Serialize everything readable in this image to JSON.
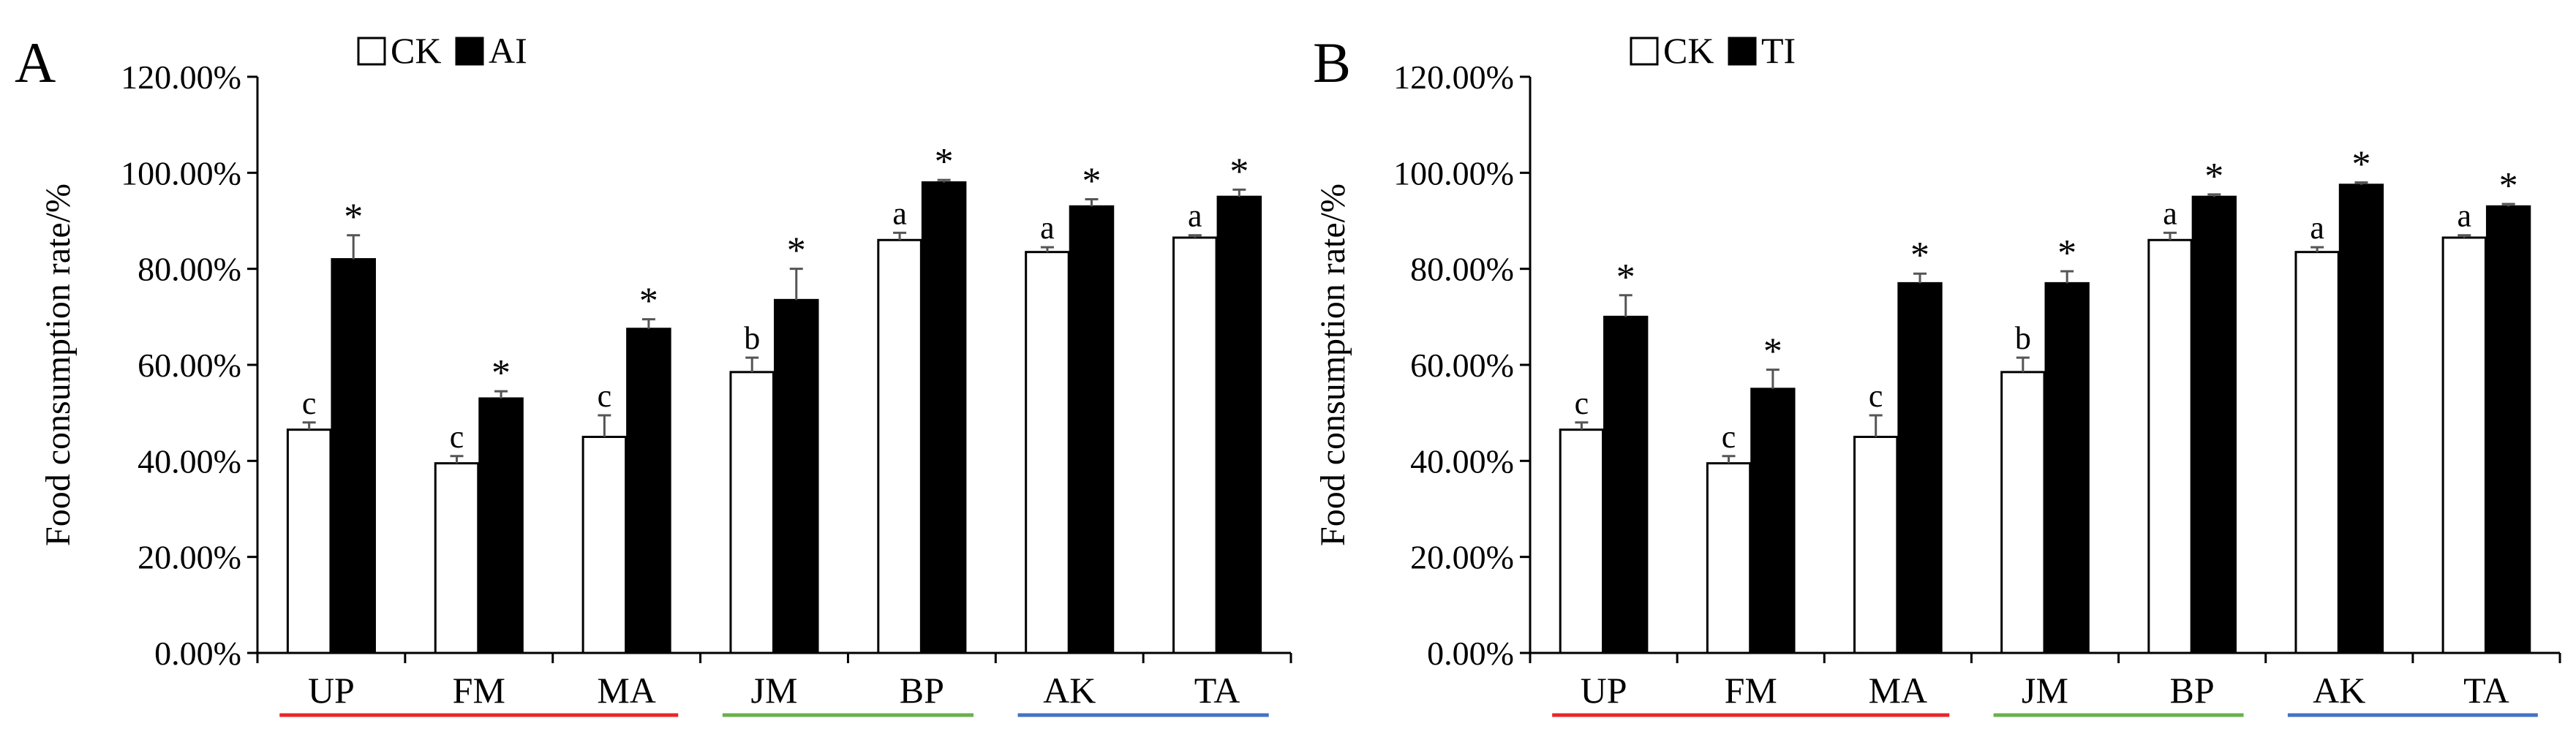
{
  "chart_data": [
    {
      "type": "bar",
      "panel_label": "A",
      "ylabel": "Food consumption rate/%",
      "ylim": [
        0,
        120
      ],
      "yticks": [
        "0.00%",
        "20.00%",
        "40.00%",
        "60.00%",
        "80.00%",
        "100.00%",
        "120.00%"
      ],
      "categories": [
        "UP",
        "FM",
        "MA",
        "JM",
        "BP",
        "AK",
        "TA"
      ],
      "legend_position": "top-center",
      "category_groups": [
        {
          "categories": [
            "UP",
            "FM",
            "MA"
          ],
          "color": "#e8262b"
        },
        {
          "categories": [
            "JM",
            "BP"
          ],
          "color": "#6ab04c"
        },
        {
          "categories": [
            "AK",
            "TA"
          ],
          "color": "#4472c4"
        }
      ],
      "series": [
        {
          "name": "CK",
          "color": "#ffffff",
          "values": [
            46.5,
            39.5,
            45.0,
            58.5,
            86.0,
            83.5,
            86.5
          ],
          "errors": [
            1.5,
            1.5,
            4.5,
            3.0,
            1.5,
            1.0,
            0.5
          ],
          "labels": [
            "c",
            "c",
            "c",
            "b",
            "a",
            "a",
            "a"
          ]
        },
        {
          "name": "AI",
          "color": "#000000",
          "values": [
            82.0,
            53.0,
            67.5,
            73.5,
            98.0,
            93.0,
            95.0
          ],
          "errors": [
            5.0,
            1.5,
            2.0,
            6.5,
            0.5,
            1.5,
            1.5
          ],
          "labels": [
            "*",
            "*",
            "*",
            "*",
            "*",
            "*",
            "*"
          ]
        }
      ]
    },
    {
      "type": "bar",
      "panel_label": "B",
      "ylabel": "Food consumption rate/%",
      "ylim": [
        0,
        120
      ],
      "yticks": [
        "0.00%",
        "20.00%",
        "40.00%",
        "60.00%",
        "80.00%",
        "100.00%",
        "120.00%"
      ],
      "categories": [
        "UP",
        "FM",
        "MA",
        "JM",
        "BP",
        "AK",
        "TA"
      ],
      "legend_position": "top-center",
      "category_groups": [
        {
          "categories": [
            "UP",
            "FM",
            "MA"
          ],
          "color": "#e8262b"
        },
        {
          "categories": [
            "JM",
            "BP"
          ],
          "color": "#6ab04c"
        },
        {
          "categories": [
            "AK",
            "TA"
          ],
          "color": "#4472c4"
        }
      ],
      "series": [
        {
          "name": "CK",
          "color": "#ffffff",
          "values": [
            46.5,
            39.5,
            45.0,
            58.5,
            86.0,
            83.5,
            86.5
          ],
          "errors": [
            1.5,
            1.5,
            4.5,
            3.0,
            1.5,
            1.0,
            0.5
          ],
          "labels": [
            "c",
            "c",
            "c",
            "b",
            "a",
            "a",
            "a"
          ]
        },
        {
          "name": "TI",
          "color": "#000000",
          "values": [
            70.0,
            55.0,
            77.0,
            77.0,
            95.0,
            97.5,
            93.0
          ],
          "errors": [
            4.5,
            4.0,
            2.0,
            2.5,
            0.5,
            0.5,
            0.5
          ],
          "labels": [
            "*",
            "*",
            "*",
            "*",
            "*",
            "*",
            "*"
          ]
        }
      ]
    }
  ]
}
